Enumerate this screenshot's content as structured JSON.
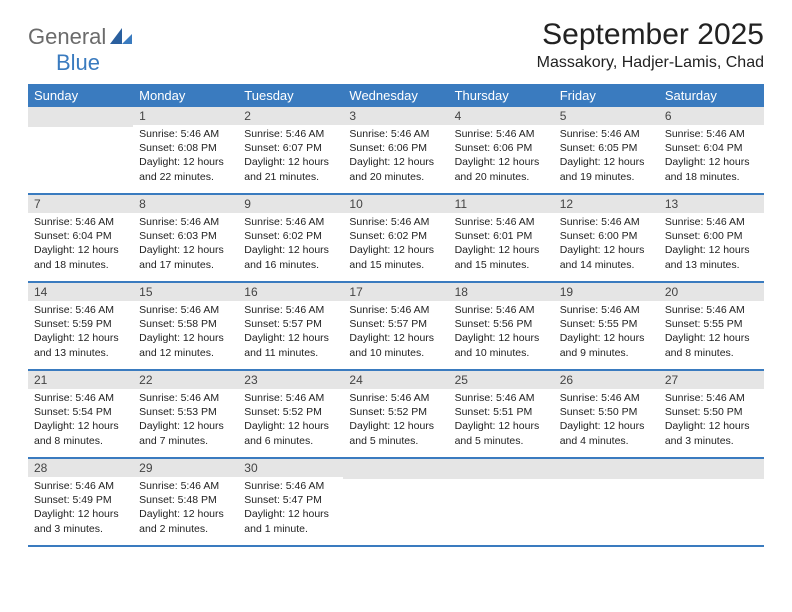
{
  "brand": {
    "part1": "General",
    "part2": "Blue"
  },
  "title": "September 2025",
  "location": "Massakory, Hadjer-Lamis, Chad",
  "colors": {
    "header_bg": "#3a7bbf",
    "header_fg": "#ffffff",
    "daynum_bg": "#e5e5e5",
    "row_border": "#3a7bbf",
    "logo_gray": "#6b6b6b",
    "logo_blue": "#3a7bbf"
  },
  "weekdays": [
    "Sunday",
    "Monday",
    "Tuesday",
    "Wednesday",
    "Thursday",
    "Friday",
    "Saturday"
  ],
  "weeks": [
    [
      null,
      {
        "n": "1",
        "sr": "5:46 AM",
        "ss": "6:08 PM",
        "dl": "12 hours and 22 minutes."
      },
      {
        "n": "2",
        "sr": "5:46 AM",
        "ss": "6:07 PM",
        "dl": "12 hours and 21 minutes."
      },
      {
        "n": "3",
        "sr": "5:46 AM",
        "ss": "6:06 PM",
        "dl": "12 hours and 20 minutes."
      },
      {
        "n": "4",
        "sr": "5:46 AM",
        "ss": "6:06 PM",
        "dl": "12 hours and 20 minutes."
      },
      {
        "n": "5",
        "sr": "5:46 AM",
        "ss": "6:05 PM",
        "dl": "12 hours and 19 minutes."
      },
      {
        "n": "6",
        "sr": "5:46 AM",
        "ss": "6:04 PM",
        "dl": "12 hours and 18 minutes."
      }
    ],
    [
      {
        "n": "7",
        "sr": "5:46 AM",
        "ss": "6:04 PM",
        "dl": "12 hours and 18 minutes."
      },
      {
        "n": "8",
        "sr": "5:46 AM",
        "ss": "6:03 PM",
        "dl": "12 hours and 17 minutes."
      },
      {
        "n": "9",
        "sr": "5:46 AM",
        "ss": "6:02 PM",
        "dl": "12 hours and 16 minutes."
      },
      {
        "n": "10",
        "sr": "5:46 AM",
        "ss": "6:02 PM",
        "dl": "12 hours and 15 minutes."
      },
      {
        "n": "11",
        "sr": "5:46 AM",
        "ss": "6:01 PM",
        "dl": "12 hours and 15 minutes."
      },
      {
        "n": "12",
        "sr": "5:46 AM",
        "ss": "6:00 PM",
        "dl": "12 hours and 14 minutes."
      },
      {
        "n": "13",
        "sr": "5:46 AM",
        "ss": "6:00 PM",
        "dl": "12 hours and 13 minutes."
      }
    ],
    [
      {
        "n": "14",
        "sr": "5:46 AM",
        "ss": "5:59 PM",
        "dl": "12 hours and 13 minutes."
      },
      {
        "n": "15",
        "sr": "5:46 AM",
        "ss": "5:58 PM",
        "dl": "12 hours and 12 minutes."
      },
      {
        "n": "16",
        "sr": "5:46 AM",
        "ss": "5:57 PM",
        "dl": "12 hours and 11 minutes."
      },
      {
        "n": "17",
        "sr": "5:46 AM",
        "ss": "5:57 PM",
        "dl": "12 hours and 10 minutes."
      },
      {
        "n": "18",
        "sr": "5:46 AM",
        "ss": "5:56 PM",
        "dl": "12 hours and 10 minutes."
      },
      {
        "n": "19",
        "sr": "5:46 AM",
        "ss": "5:55 PM",
        "dl": "12 hours and 9 minutes."
      },
      {
        "n": "20",
        "sr": "5:46 AM",
        "ss": "5:55 PM",
        "dl": "12 hours and 8 minutes."
      }
    ],
    [
      {
        "n": "21",
        "sr": "5:46 AM",
        "ss": "5:54 PM",
        "dl": "12 hours and 8 minutes."
      },
      {
        "n": "22",
        "sr": "5:46 AM",
        "ss": "5:53 PM",
        "dl": "12 hours and 7 minutes."
      },
      {
        "n": "23",
        "sr": "5:46 AM",
        "ss": "5:52 PM",
        "dl": "12 hours and 6 minutes."
      },
      {
        "n": "24",
        "sr": "5:46 AM",
        "ss": "5:52 PM",
        "dl": "12 hours and 5 minutes."
      },
      {
        "n": "25",
        "sr": "5:46 AM",
        "ss": "5:51 PM",
        "dl": "12 hours and 5 minutes."
      },
      {
        "n": "26",
        "sr": "5:46 AM",
        "ss": "5:50 PM",
        "dl": "12 hours and 4 minutes."
      },
      {
        "n": "27",
        "sr": "5:46 AM",
        "ss": "5:50 PM",
        "dl": "12 hours and 3 minutes."
      }
    ],
    [
      {
        "n": "28",
        "sr": "5:46 AM",
        "ss": "5:49 PM",
        "dl": "12 hours and 3 minutes."
      },
      {
        "n": "29",
        "sr": "5:46 AM",
        "ss": "5:48 PM",
        "dl": "12 hours and 2 minutes."
      },
      {
        "n": "30",
        "sr": "5:46 AM",
        "ss": "5:47 PM",
        "dl": "12 hours and 1 minute."
      },
      null,
      null,
      null,
      null
    ]
  ],
  "labels": {
    "sunrise": "Sunrise:",
    "sunset": "Sunset:",
    "daylight": "Daylight:"
  }
}
